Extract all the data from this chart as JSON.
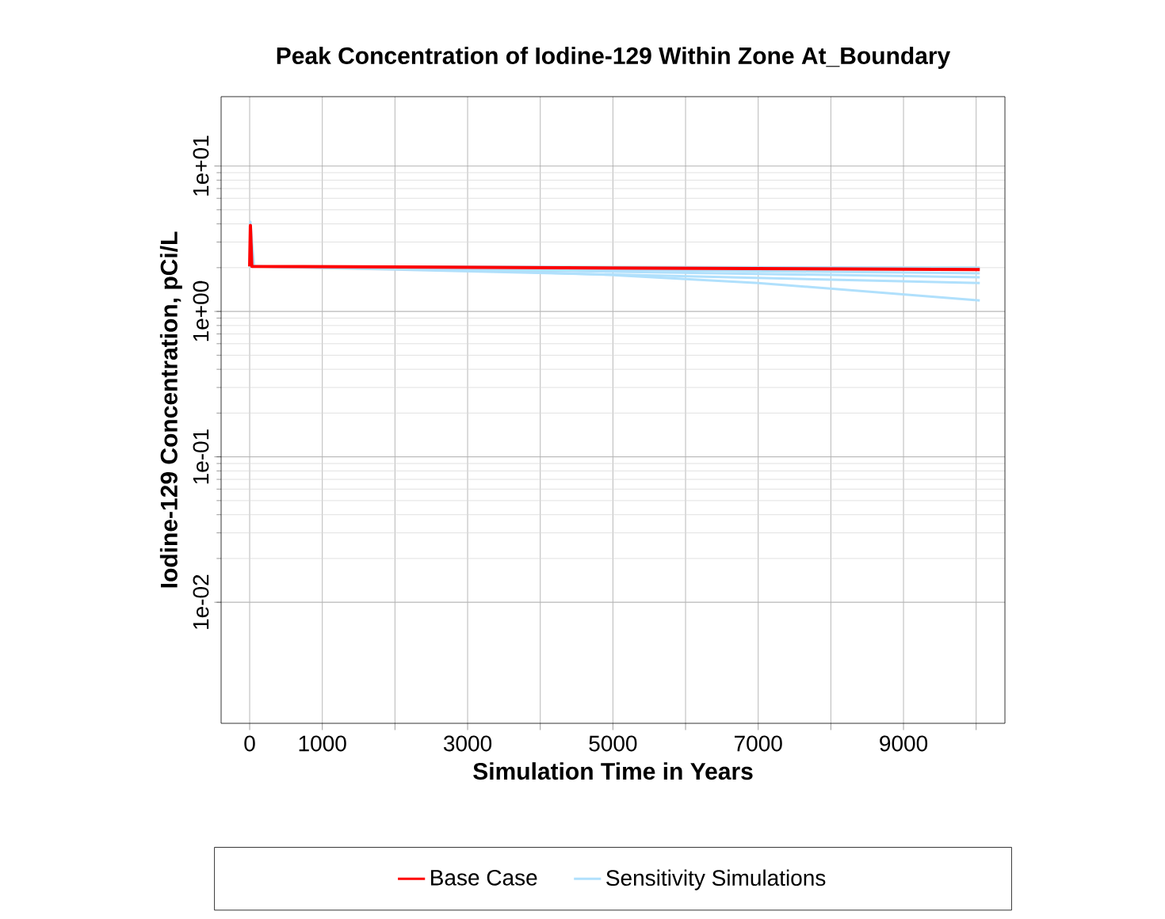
{
  "chart_data": {
    "type": "line",
    "title": "Peak Concentration of Iodine-129 Within Zone At_Boundary",
    "xlabel": "Simulation Time in Years",
    "ylabel": "Iodine-129 Concentration, pCi/L",
    "log": "y",
    "grid": true,
    "legend": "bottom",
    "xlim": [
      -393,
      10396
    ],
    "ylim": [
      0.00147,
      30
    ],
    "xticks": [
      0,
      1000,
      {
        "value": 2000,
        "label": null
      },
      3000,
      {
        "value": 4000,
        "label": null
      },
      5000,
      {
        "value": 6000,
        "label": null
      },
      7000,
      {
        "value": 8000,
        "label": null
      },
      9000,
      {
        "value": 10000,
        "label": null
      }
    ],
    "yticks": [
      {
        "value": 0.01,
        "label": "1e-02"
      },
      {
        "value": 0.1,
        "label": "1e-01"
      },
      {
        "value": 1,
        "label": "1e+00"
      },
      {
        "value": 10,
        "label": "1e+01"
      }
    ],
    "series": [
      {
        "name": "Base Case",
        "color": "#ff0000",
        "x": [
          0,
          10,
          30,
          10050
        ],
        "values": [
          2.04,
          3.9,
          2.04,
          1.94
        ]
      },
      {
        "name": "Sensitivity Simulations",
        "color": "#b0e0fc",
        "x": [
          0,
          10,
          60,
          10050
        ],
        "values": [
          2.04,
          4.13,
          2.04,
          2.0
        ]
      },
      {
        "color": "#b0e0fc",
        "x": [
          0,
          60,
          10050
        ],
        "values": [
          2.04,
          2.04,
          1.83
        ]
      },
      {
        "color": "#b0e0fc",
        "x": [
          0,
          60,
          10050
        ],
        "values": [
          2.04,
          2.04,
          1.72
        ]
      },
      {
        "color": "#b0e0fc",
        "x": [
          0,
          60,
          10050
        ],
        "values": [
          2.04,
          2.04,
          1.57
        ]
      },
      {
        "color": "#b0e0fc",
        "x": [
          0,
          60,
          1000,
          3000,
          5000,
          7000,
          10050
        ],
        "values": [
          2.04,
          2.04,
          2.0,
          1.92,
          1.78,
          1.57,
          1.19
        ]
      }
    ]
  }
}
